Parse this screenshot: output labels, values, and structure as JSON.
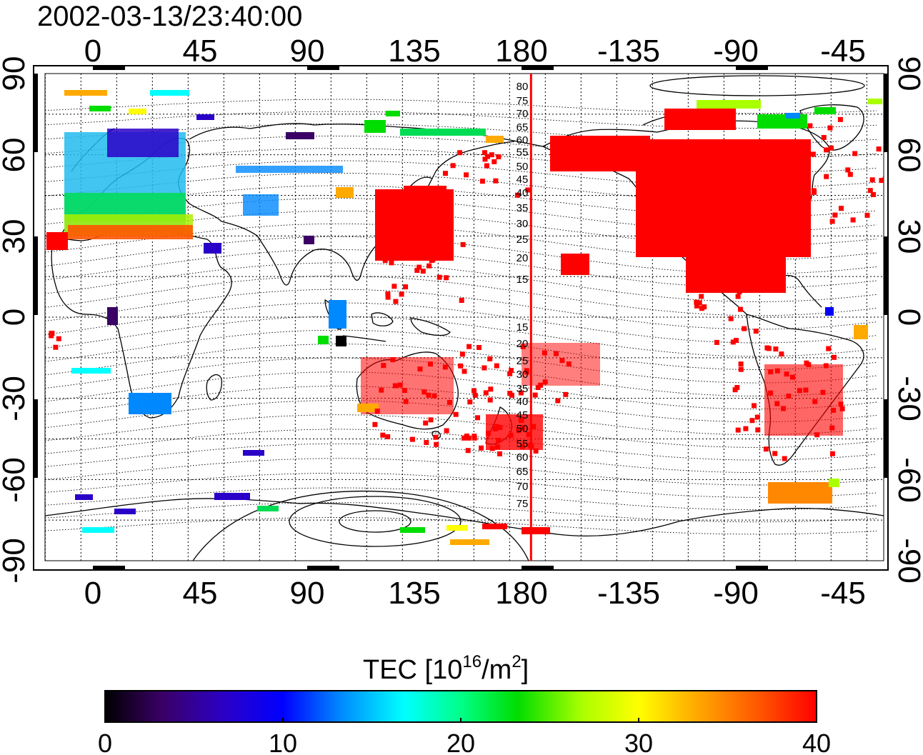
{
  "title": "2002-03-13/23:40:00",
  "colorbar": {
    "label_main": "TEC  [10",
    "label_exp": "16",
    "label_unit": "/m",
    "label_exp2": "2",
    "label_close": "]",
    "ticks": [
      "0",
      "10",
      "20",
      "30",
      "40"
    ],
    "range": [
      0,
      40
    ],
    "colormap": [
      "#000000",
      "#3a0066",
      "#2a00c8",
      "#0000ff",
      "#0088ff",
      "#00ffff",
      "#00ff88",
      "#00dd00",
      "#aaff00",
      "#ffff00",
      "#ffaa00",
      "#ff5500",
      "#ff0000"
    ]
  },
  "map": {
    "lon_labels": [
      "0",
      "45",
      "90",
      "135",
      "180",
      "-135",
      "-90",
      "-45"
    ],
    "lat_labels": [
      "90",
      "60",
      "30",
      "0",
      "-30",
      "-60",
      "-90"
    ],
    "magnetic_lat_labels": [
      "80",
      "75",
      "70",
      "65",
      "60",
      "55",
      "50",
      "45",
      "40",
      "35",
      "30",
      "25",
      "20",
      "15",
      "15",
      "20",
      "25",
      "30",
      "35",
      "40",
      "45",
      "50",
      "55",
      "60",
      "65",
      "70",
      "75"
    ],
    "marker_line_color": "#ff0000",
    "marker_line_lon": 184
  }
}
